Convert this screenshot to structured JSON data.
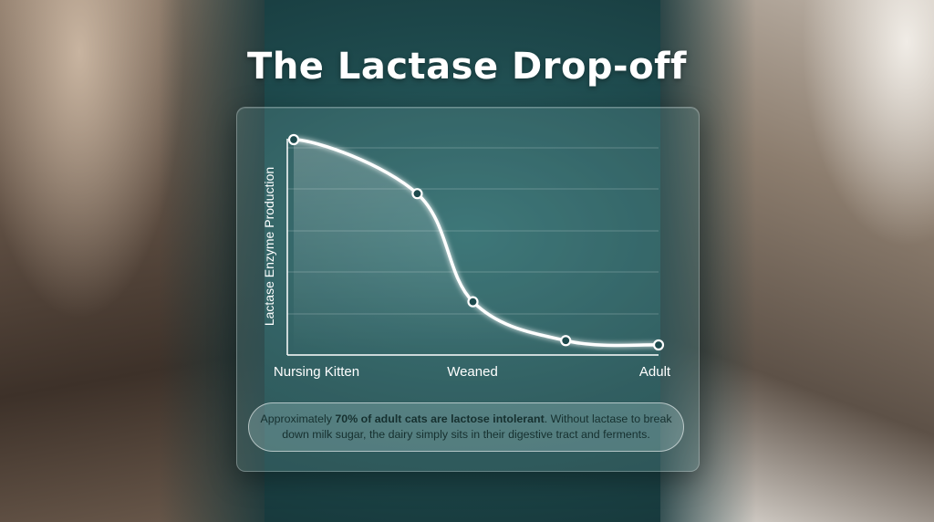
{
  "title": "The Lactase Drop-off",
  "chart_data": {
    "type": "line",
    "ylabel": "Lactase Enzyme Production",
    "xlabel": "",
    "x_tick_labels": [
      "Nursing Kitten",
      "Weaned",
      "Adult"
    ],
    "points": [
      {
        "x": 0,
        "y": 95
      },
      {
        "x": 0.35,
        "y": 70
      },
      {
        "x": 0.5,
        "y": 20
      },
      {
        "x": 0.75,
        "y": 2
      },
      {
        "x": 1,
        "y": 0
      }
    ],
    "ylim": [
      0,
      100
    ],
    "grid": true,
    "legend": "none",
    "line_color": "#ffffff"
  },
  "caption": {
    "part1": "Approximately ",
    "bold": "70% of adult cats are lactose intolerant",
    "part2": ". Without lactase to break down milk sugar, the dairy simply sits in their digestive tract and ferments."
  }
}
